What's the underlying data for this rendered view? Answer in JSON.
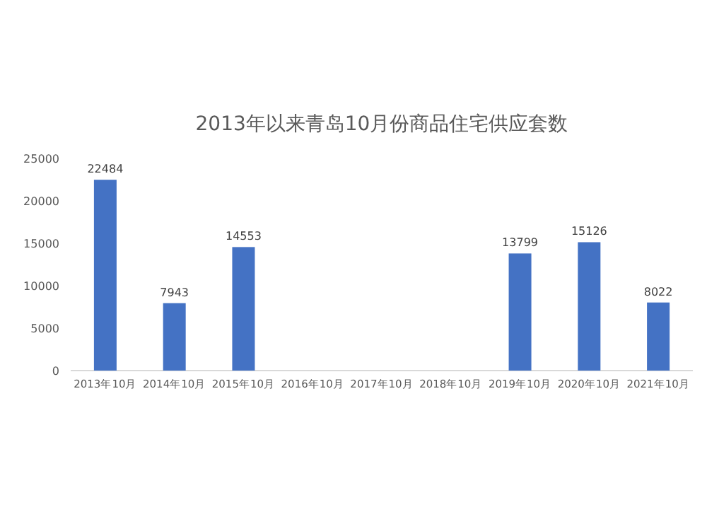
{
  "chart_data": {
    "type": "bar",
    "title": "2013年以来青岛10月份商品住宅供应套数",
    "categories": [
      "2013年10月",
      "2014年10月",
      "2015年10月",
      "2016年10月",
      "2017年10月",
      "2018年10月",
      "2019年10月",
      "2020年10月",
      "2021年10月"
    ],
    "values": [
      22484,
      7943,
      14553,
      null,
      null,
      null,
      13799,
      15126,
      8022
    ],
    "color": "#4472c4",
    "ylim": [
      0,
      25000
    ],
    "yticks": [
      0,
      5000,
      10000,
      15000,
      20000,
      25000
    ],
    "grid": false,
    "data_labels": true
  }
}
